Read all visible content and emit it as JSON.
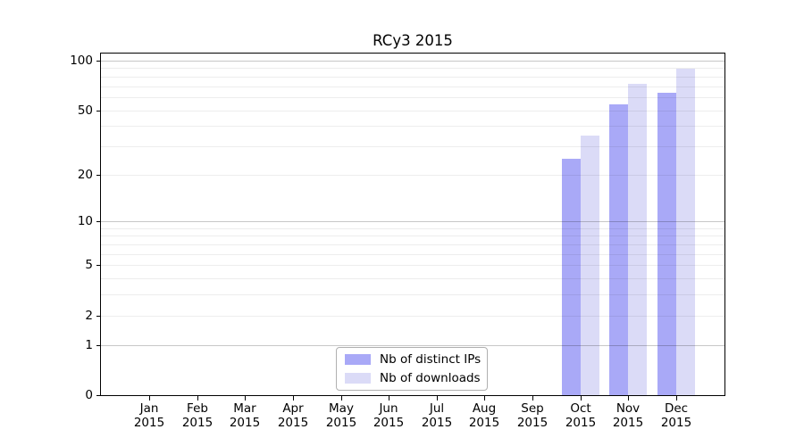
{
  "chart_data": {
    "type": "bar",
    "title": "RCy3 2015",
    "categories": [
      "Jan",
      "Feb",
      "Mar",
      "Apr",
      "May",
      "Jun",
      "Jul",
      "Aug",
      "Sep",
      "Oct",
      "Nov",
      "Dec"
    ],
    "year_label": "2015",
    "series": [
      {
        "name": "Nb of distinct IPs",
        "color": "#a9a9f7",
        "values": [
          0,
          0,
          0,
          0,
          0,
          0,
          0,
          0,
          0,
          25,
          54,
          64
        ]
      },
      {
        "name": "Nb of downloads",
        "color": "#dbdbf7",
        "values": [
          0,
          0,
          0,
          0,
          0,
          0,
          0,
          0,
          0,
          35,
          72,
          89
        ]
      }
    ],
    "yscale": "log1p",
    "ylim": [
      0,
      100
    ],
    "yticks": [
      0,
      1,
      2,
      5,
      10,
      20,
      50,
      100
    ],
    "major_gridlines": [
      1,
      10,
      100
    ],
    "minor_gridlines": [
      2,
      3,
      4,
      5,
      6,
      7,
      8,
      9,
      20,
      30,
      40,
      50,
      60,
      70,
      80,
      90
    ],
    "grid": true,
    "legend_position": "inside-bottom-center",
    "colors": {
      "frame": "#000000",
      "major_grid": "rgba(0,0,0,0.22)",
      "minor_grid": "rgba(0,0,0,0.07)",
      "background": "#ffffff"
    }
  }
}
